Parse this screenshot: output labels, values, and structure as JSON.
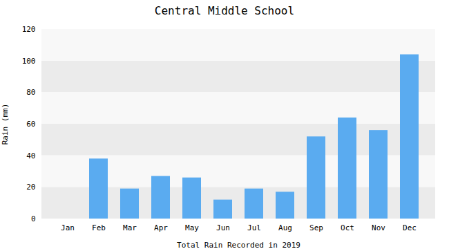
{
  "chart_data": {
    "type": "bar",
    "title": "Central Middle School",
    "xlabel": "Total Rain Recorded in 2019",
    "ylabel": "Rain (mm)",
    "categories": [
      "Jan",
      "Feb",
      "Mar",
      "Apr",
      "May",
      "Jun",
      "Jul",
      "Aug",
      "Sep",
      "Oct",
      "Nov",
      "Dec"
    ],
    "values": [
      0,
      38,
      19,
      27,
      26,
      12,
      19,
      17,
      52,
      64,
      56,
      104
    ],
    "color": "#5aabf0",
    "ylim": [
      0,
      120
    ],
    "yticks": [
      0,
      20,
      40,
      60,
      80,
      100,
      120
    ],
    "grid": true
  }
}
